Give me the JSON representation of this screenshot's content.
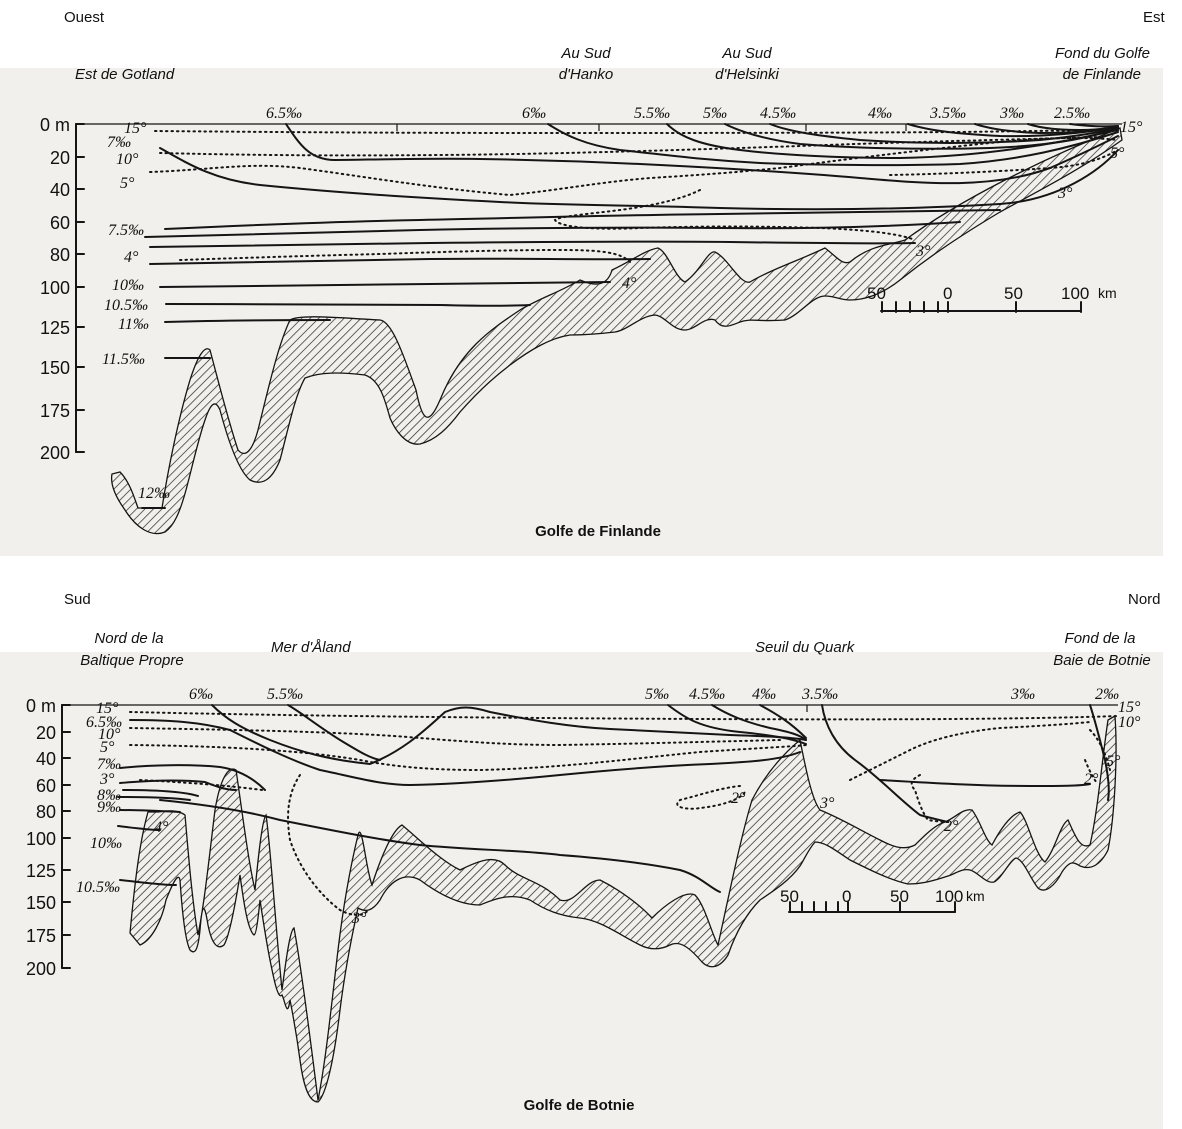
{
  "colors": {
    "panel_bg": "#f1f0ec",
    "ink": "#151515"
  },
  "finlande": {
    "left_dir": "Ouest",
    "right_dir": "Est",
    "places": [
      "Est de Gotland",
      "Au Sud\nd'Hanko",
      "Au Sud\nd'Helsinki",
      "Fond du Golfe\nde Finlande"
    ],
    "caption": "Golfe de Finlande",
    "depth_ticks": [
      "0 m",
      "20",
      "40",
      "60",
      "80",
      "100",
      "125",
      "150",
      "175",
      "200"
    ],
    "salinity_labels": [
      "6.5‰",
      "6‰",
      "5.5‰",
      "5‰",
      "4.5‰",
      "4‰",
      "3.5‰",
      "3‰",
      "2.5‰",
      "7‰",
      "7.5‰",
      "10‰",
      "10.5‰",
      "11‰",
      "11.5‰",
      "12‰"
    ],
    "temperature_labels": [
      "15°",
      "10°",
      "5°",
      "4°",
      "4°",
      "3°",
      "3°",
      "5°",
      "15°"
    ],
    "scale": {
      "ticks": [
        "50",
        "0",
        "50",
        "100"
      ],
      "unit": "km"
    }
  },
  "botnie": {
    "left_dir": "Sud",
    "right_dir": "Nord",
    "places": [
      "Nord de la\nBaltique Propre",
      "Mer d'Åland",
      "Seuil du Quark",
      "Fond de la\nBaie de Botnie"
    ],
    "caption": "Golfe de Botnie",
    "depth_ticks": [
      "0 m",
      "20",
      "40",
      "60",
      "80",
      "100",
      "125",
      "150",
      "175",
      "200"
    ],
    "salinity_labels": [
      "6‰",
      "5.5‰",
      "5‰",
      "4.5‰",
      "4‰",
      "3.5‰",
      "3‰",
      "2‰",
      "6.5‰",
      "7‰",
      "8‰",
      "9‰",
      "10‰",
      "10.5‰"
    ],
    "temperature_labels": [
      "15°",
      "10°",
      "5°",
      "3°",
      "4°",
      "3°",
      "2°",
      "3°",
      "2°",
      "2°",
      "5°",
      "10°",
      "15°"
    ],
    "scale": {
      "ticks": [
        "50",
        "0",
        "50",
        "100"
      ],
      "unit": "km"
    }
  }
}
